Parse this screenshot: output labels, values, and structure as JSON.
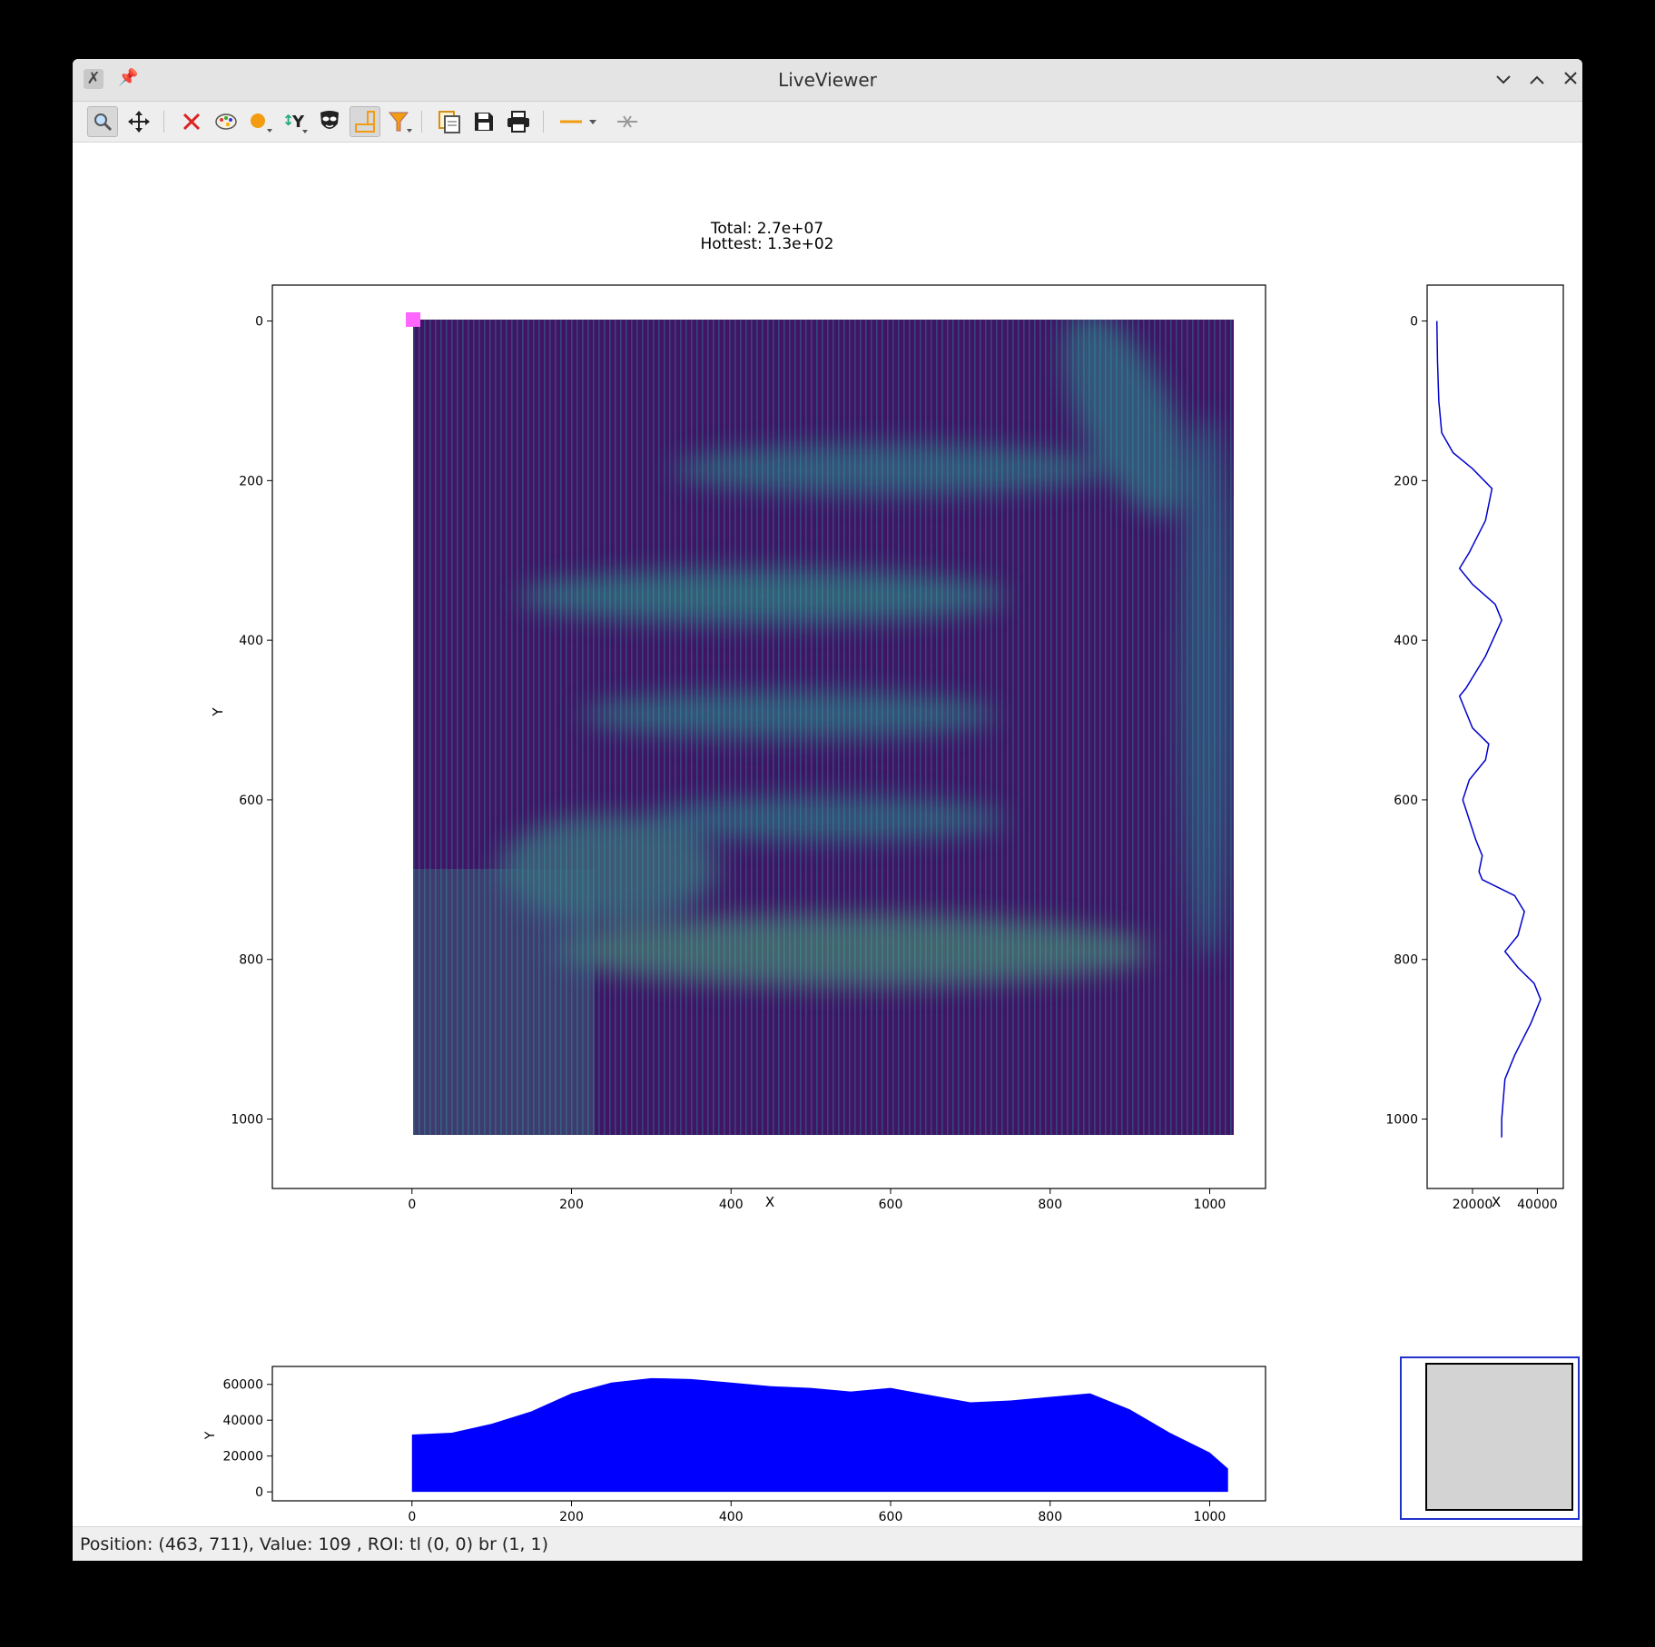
{
  "window": {
    "title": "LiveViewer"
  },
  "toolbar": {
    "items": [
      {
        "name": "zoom-icon",
        "active": true
      },
      {
        "name": "pan-icon"
      },
      {
        "name": "reset-zoom-icon"
      },
      {
        "name": "colormap-icon"
      },
      {
        "name": "marker-icon"
      },
      {
        "name": "y-axis-icon"
      },
      {
        "name": "mask-icon"
      },
      {
        "name": "roi-icon",
        "active": true
      },
      {
        "name": "filter-icon"
      },
      {
        "name": "copy-icon"
      },
      {
        "name": "save-icon"
      },
      {
        "name": "print-icon"
      },
      {
        "name": "line-style-icon"
      },
      {
        "name": "crosshair-icon"
      }
    ]
  },
  "image_panel": {
    "title_line1": "Total: 2.7e+07",
    "title_line2": "Hottest: 1.3e+02",
    "xlabel": "X",
    "ylabel": "Y",
    "x_ticks": [
      "0",
      "200",
      "400",
      "600",
      "800",
      "1000"
    ],
    "y_ticks": [
      "0",
      "200",
      "400",
      "600",
      "800",
      "1000"
    ],
    "colormap": "viridis",
    "roi_color": "#ff66ff"
  },
  "chart_data": [
    {
      "type": "heatmap",
      "title": "Total: 2.7e+07\nHottest: 1.3e+02",
      "xlabel": "X",
      "ylabel": "Y",
      "x_range": [
        0,
        1024
      ],
      "y_range": [
        0,
        1024
      ],
      "xlim": [
        -175,
        1070
      ],
      "ylim": [
        1087,
        -45
      ],
      "x_ticks": [
        0,
        200,
        400,
        600,
        800,
        1000
      ],
      "y_ticks": [
        0,
        200,
        400,
        600,
        800,
        1000
      ],
      "colormap": "viridis",
      "hottest": 130,
      "total": 27000000
    },
    {
      "type": "line",
      "name": "row-profile",
      "xlabel": "X",
      "xlim": [
        6000,
        48000
      ],
      "ylim": [
        1087,
        -45
      ],
      "x_ticks": [
        20000,
        40000
      ],
      "y_ticks": [
        0,
        200,
        400,
        600,
        800,
        1000
      ],
      "y_tick_labels": [
        "0",
        "200",
        "400",
        "600",
        "800",
        "1000"
      ],
      "color": "#0000cc",
      "points": [
        [
          9000,
          0
        ],
        [
          9200,
          50
        ],
        [
          9600,
          100
        ],
        [
          10500,
          140
        ],
        [
          14000,
          165
        ],
        [
          20000,
          185
        ],
        [
          26000,
          210
        ],
        [
          24000,
          250
        ],
        [
          19000,
          290
        ],
        [
          16000,
          310
        ],
        [
          20000,
          330
        ],
        [
          27000,
          355
        ],
        [
          29000,
          375
        ],
        [
          24000,
          420
        ],
        [
          18000,
          460
        ],
        [
          16000,
          470
        ],
        [
          20000,
          510
        ],
        [
          25000,
          530
        ],
        [
          24000,
          550
        ],
        [
          19000,
          575
        ],
        [
          17000,
          600
        ],
        [
          21000,
          650
        ],
        [
          23000,
          670
        ],
        [
          22000,
          690
        ],
        [
          23000,
          700
        ],
        [
          33000,
          720
        ],
        [
          36000,
          740
        ],
        [
          34000,
          770
        ],
        [
          30000,
          790
        ],
        [
          34000,
          810
        ],
        [
          39000,
          830
        ],
        [
          41000,
          850
        ],
        [
          38000,
          880
        ],
        [
          33000,
          920
        ],
        [
          30000,
          950
        ],
        [
          29000,
          1000
        ],
        [
          29000,
          1023
        ]
      ]
    },
    {
      "type": "area",
      "name": "column-profile",
      "ylabel": "Y",
      "xlim": [
        -175,
        1070
      ],
      "ylim": [
        -5000,
        70000
      ],
      "x_ticks": [
        0,
        200,
        400,
        600,
        800,
        1000
      ],
      "y_ticks": [
        0,
        20000,
        40000,
        60000
      ],
      "color": "#0000ff",
      "points": [
        [
          0,
          32000
        ],
        [
          50,
          33000
        ],
        [
          100,
          38000
        ],
        [
          150,
          45000
        ],
        [
          200,
          55000
        ],
        [
          250,
          61000
        ],
        [
          300,
          63500
        ],
        [
          350,
          63000
        ],
        [
          400,
          61000
        ],
        [
          450,
          59000
        ],
        [
          500,
          58000
        ],
        [
          550,
          56000
        ],
        [
          600,
          58000
        ],
        [
          650,
          54000
        ],
        [
          700,
          50000
        ],
        [
          750,
          51000
        ],
        [
          800,
          53000
        ],
        [
          850,
          55000
        ],
        [
          900,
          46000
        ],
        [
          950,
          33000
        ],
        [
          1000,
          22000
        ],
        [
          1023,
          13000
        ]
      ]
    }
  ],
  "status": {
    "text": "Position: (463, 711), Value: 109 , ROI: tl (0, 0) br (1, 1)"
  }
}
